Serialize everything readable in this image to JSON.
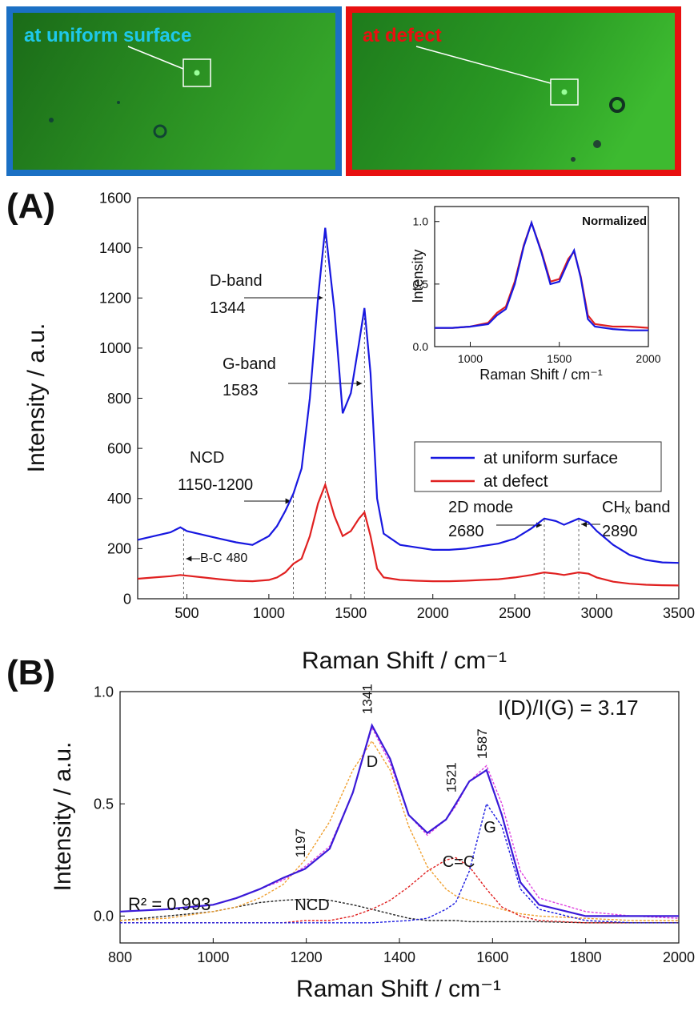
{
  "images": [
    {
      "label": "at uniform surface"
    },
    {
      "label": "at defect"
    }
  ],
  "chart_data": [
    {
      "type": "line",
      "label": "(A)",
      "xlabel": "Raman Shift / cm⁻¹",
      "ylabel": "Intensity / a.u.",
      "xlim": [
        200,
        3500
      ],
      "xticks": [
        500,
        1000,
        1500,
        2000,
        2500,
        3000,
        3500
      ],
      "ylim": [
        0,
        1600
      ],
      "yticks": [
        0,
        200,
        400,
        600,
        800,
        1000,
        1200,
        1400,
        1600
      ],
      "legend": "center right",
      "x": [
        200,
        300,
        400,
        460,
        500,
        600,
        700,
        800,
        900,
        1000,
        1050,
        1100,
        1150,
        1200,
        1250,
        1300,
        1344,
        1400,
        1450,
        1500,
        1550,
        1583,
        1620,
        1660,
        1700,
        1800,
        1900,
        2000,
        2100,
        2200,
        2300,
        2400,
        2500,
        2600,
        2680,
        2750,
        2800,
        2890,
        2950,
        3000,
        3100,
        3200,
        3300,
        3400,
        3500
      ],
      "series": [
        {
          "name": "at uniform surface",
          "color": "#1818e0",
          "values": [
            235,
            250,
            265,
            285,
            270,
            255,
            240,
            225,
            215,
            250,
            290,
            350,
            420,
            520,
            800,
            1200,
            1480,
            1150,
            740,
            820,
            1020,
            1160,
            900,
            400,
            260,
            215,
            205,
            195,
            195,
            200,
            210,
            220,
            240,
            280,
            320,
            310,
            295,
            320,
            305,
            270,
            215,
            175,
            155,
            145,
            143
          ]
        },
        {
          "name": "at defect",
          "color": "#e02020",
          "values": [
            80,
            85,
            90,
            95,
            92,
            85,
            78,
            72,
            70,
            75,
            85,
            105,
            140,
            160,
            250,
            380,
            455,
            330,
            250,
            270,
            320,
            345,
            250,
            120,
            85,
            75,
            72,
            70,
            70,
            72,
            75,
            78,
            85,
            95,
            105,
            100,
            95,
            105,
            100,
            85,
            68,
            60,
            56,
            54,
            53
          ]
        }
      ],
      "annotations": [
        {
          "label": "D-band",
          "x": 1344
        },
        {
          "label": "G-band",
          "x": 1583
        },
        {
          "label": "NCD",
          "text": "1150-1200",
          "x": 1150
        },
        {
          "label": "B-C",
          "x": 480
        },
        {
          "label": "2D mode",
          "x": 2680
        },
        {
          "label": "CHₓ band",
          "x": 2890
        }
      ]
    },
    {
      "type": "line",
      "xlabel": "Raman Shift / cm⁻¹",
      "ylabel": "Intensity",
      "note": "Normalized",
      "xlim": [
        800,
        2000
      ],
      "xticks": [
        1000,
        1500,
        2000
      ],
      "ylim": [
        0,
        1.12
      ],
      "yticks": [
        {
          "value": 0,
          "label": "0.0"
        },
        {
          "value": 0.5,
          "label": "0.5"
        },
        {
          "value": 1,
          "label": "1.0"
        }
      ],
      "x": [
        800,
        900,
        1000,
        1100,
        1150,
        1200,
        1250,
        1300,
        1344,
        1400,
        1450,
        1500,
        1550,
        1583,
        1620,
        1660,
        1700,
        1800,
        1900,
        2000
      ],
      "series": [
        {
          "color": "#e02020",
          "values": [
            0.15,
            0.15,
            0.16,
            0.19,
            0.27,
            0.32,
            0.52,
            0.81,
            0.99,
            0.76,
            0.52,
            0.54,
            0.7,
            0.76,
            0.56,
            0.25,
            0.18,
            0.16,
            0.16,
            0.15
          ]
        },
        {
          "color": "#1818e0",
          "values": [
            0.15,
            0.15,
            0.16,
            0.18,
            0.25,
            0.3,
            0.5,
            0.8,
            0.99,
            0.75,
            0.5,
            0.52,
            0.68,
            0.77,
            0.55,
            0.22,
            0.16,
            0.14,
            0.13,
            0.13
          ]
        }
      ]
    },
    {
      "type": "line",
      "label": "(B)",
      "xlabel": "Raman Shift / cm⁻¹",
      "ylabel": "Intensity / a.u.",
      "xlim": [
        800,
        2000
      ],
      "xticks": [
        800,
        1000,
        1200,
        1400,
        1600,
        1800,
        2000
      ],
      "ylim": [
        -0.12,
        1.0
      ],
      "yticks": [
        {
          "value": 0,
          "label": "0.0"
        },
        {
          "value": 0.5,
          "label": "0.5"
        },
        {
          "value": 1,
          "label": "1.0"
        }
      ],
      "x": [
        800,
        900,
        1000,
        1050,
        1100,
        1150,
        1197,
        1250,
        1300,
        1341,
        1380,
        1420,
        1460,
        1500,
        1521,
        1550,
        1587,
        1620,
        1660,
        1700,
        1800,
        1900,
        2000
      ],
      "series": [
        {
          "color": "#222222",
          "style": "dotted",
          "label": "NCD",
          "values": [
            -0.02,
            0,
            0.02,
            0.04,
            0.06,
            0.07,
            0.075,
            0.07,
            0.05,
            0.03,
            0.01,
            -0.01,
            -0.02,
            -0.02,
            -0.02,
            -0.025,
            -0.025,
            -0.025,
            -0.025,
            -0.025,
            -0.03,
            -0.03,
            -0.03
          ]
        },
        {
          "color": "#f0a030",
          "style": "dotted",
          "label": "D",
          "values": [
            -0.02,
            -0.01,
            0.02,
            0.04,
            0.08,
            0.14,
            0.25,
            0.42,
            0.65,
            0.78,
            0.65,
            0.4,
            0.22,
            0.12,
            0.09,
            0.07,
            0.05,
            0.03,
            0.01,
            0,
            -0.01,
            -0.02,
            -0.02
          ]
        },
        {
          "color": "#e02020",
          "style": "dotted",
          "label": "C=C",
          "values": [
            -0.03,
            -0.03,
            -0.03,
            -0.03,
            -0.03,
            -0.03,
            -0.02,
            -0.02,
            0,
            0.03,
            0.07,
            0.13,
            0.2,
            0.25,
            0.26,
            0.22,
            0.12,
            0.04,
            0,
            -0.02,
            -0.03,
            -0.03,
            -0.03
          ]
        },
        {
          "color": "#1a1ae0",
          "style": "dotted",
          "label": "G",
          "values": [
            -0.03,
            -0.03,
            -0.03,
            -0.03,
            -0.03,
            -0.03,
            -0.03,
            -0.03,
            -0.03,
            -0.03,
            -0.025,
            -0.02,
            -0.01,
            0.03,
            0.06,
            0.2,
            0.5,
            0.4,
            0.12,
            0.03,
            -0.02,
            -0.03,
            -0.03
          ]
        },
        {
          "color": "#e040e0",
          "style": "dotted",
          "values": [
            0.02,
            0.03,
            0.05,
            0.08,
            0.12,
            0.16,
            0.22,
            0.31,
            0.55,
            0.84,
            0.68,
            0.45,
            0.36,
            0.43,
            0.49,
            0.6,
            0.67,
            0.5,
            0.2,
            0.08,
            0.02,
            0,
            -0.01
          ]
        },
        {
          "color": "#3a1ad8",
          "values": [
            0.02,
            0.03,
            0.05,
            0.08,
            0.12,
            0.17,
            0.21,
            0.3,
            0.55,
            0.85,
            0.7,
            0.45,
            0.37,
            0.43,
            0.5,
            0.6,
            0.65,
            0.45,
            0.15,
            0.05,
            0,
            0,
            0
          ]
        }
      ],
      "peaks": [
        1197,
        1341,
        1521,
        1587
      ],
      "fit_quality": "R² = 0.993",
      "ratio": "I(D)/I(G) = 3.17"
    }
  ]
}
